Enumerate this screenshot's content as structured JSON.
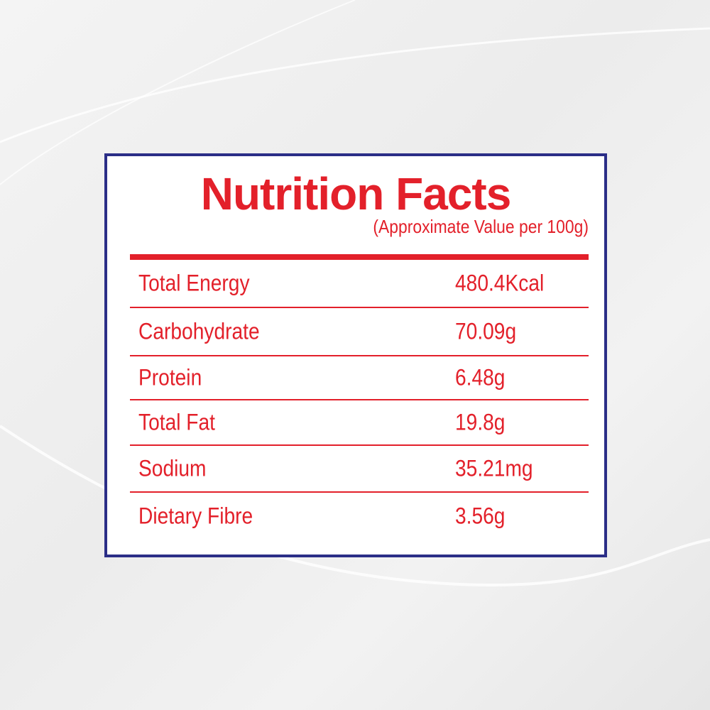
{
  "title": "Nutrition Facts",
  "subtitle": "(Approximate Value per 100g)",
  "table": {
    "rows": [
      [
        "Total Energy",
        "480.4Kcal"
      ],
      [
        "Carbohydrate",
        "70.09g"
      ],
      [
        "Protein",
        "6.48g"
      ],
      [
        "Total Fat",
        "19.8g"
      ],
      [
        "Sodium",
        "35.21mg"
      ],
      [
        "Dietary Fibre",
        "3.56g"
      ]
    ]
  }
}
